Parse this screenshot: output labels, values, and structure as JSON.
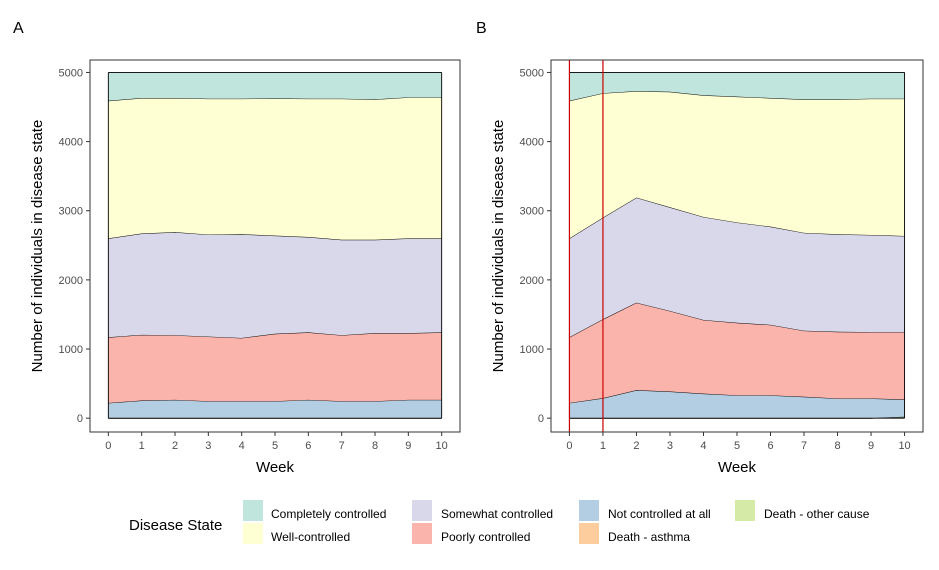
{
  "panels": [
    {
      "tag": "A"
    },
    {
      "tag": "B"
    }
  ],
  "legend": {
    "title": "Disease State",
    "items": [
      {
        "label": "Completely controlled",
        "color": "#bfe5dc"
      },
      {
        "label": "Well-controlled",
        "color": "#ffffd4"
      },
      {
        "label": "Somewhat controlled",
        "color": "#d9d8ea"
      },
      {
        "label": "Poorly controlled",
        "color": "#fbb4ab"
      },
      {
        "label": "Not controlled at all",
        "color": "#b3cde3"
      },
      {
        "label": "Death - asthma",
        "color": "#fdcd9d"
      },
      {
        "label": "Death - other cause",
        "color": "#d5eaa6"
      }
    ]
  },
  "chart_data": [
    {
      "type": "area",
      "stacked": true,
      "panel": "A",
      "xlabel": "Week",
      "ylabel": "Number of individuals in disease state",
      "x": [
        0,
        1,
        2,
        3,
        4,
        5,
        6,
        7,
        8,
        9,
        10
      ],
      "xlim": [
        -0.55,
        10.55
      ],
      "ylim": [
        -200,
        5180
      ],
      "yticks": [
        0,
        1000,
        2000,
        3000,
        4000,
        5000
      ],
      "grid": false,
      "legend_position": "bottom",
      "series": [
        {
          "name": "Death - other cause",
          "values": [
            0,
            0,
            0,
            0,
            0,
            0,
            0,
            0,
            0,
            0,
            0
          ]
        },
        {
          "name": "Death - asthma",
          "values": [
            0,
            0,
            0,
            0,
            0,
            0,
            0,
            0,
            0,
            0,
            0
          ]
        },
        {
          "name": "Not controlled at all",
          "values": [
            220,
            255,
            265,
            245,
            245,
            245,
            265,
            245,
            245,
            265,
            265
          ]
        },
        {
          "name": "Poorly controlled",
          "values": [
            950,
            950,
            935,
            935,
            915,
            975,
            975,
            955,
            985,
            965,
            975
          ]
        },
        {
          "name": "Somewhat controlled",
          "values": [
            1430,
            1465,
            1490,
            1475,
            1500,
            1420,
            1380,
            1380,
            1350,
            1370,
            1360
          ]
        },
        {
          "name": "Well-controlled",
          "values": [
            1990,
            1960,
            1940,
            1965,
            1960,
            1985,
            2000,
            2040,
            2030,
            2040,
            2040
          ]
        },
        {
          "name": "Completely controlled",
          "values": [
            410,
            370,
            370,
            380,
            380,
            375,
            380,
            380,
            390,
            360,
            360
          ]
        }
      ]
    },
    {
      "type": "area",
      "stacked": true,
      "panel": "B",
      "xlabel": "Week",
      "ylabel": "Number of individuals in disease state",
      "x": [
        0,
        1,
        2,
        3,
        4,
        5,
        6,
        7,
        8,
        9,
        10
      ],
      "xlim": [
        -0.55,
        10.55
      ],
      "ylim": [
        -200,
        5180
      ],
      "yticks": [
        0,
        1000,
        2000,
        3000,
        4000,
        5000
      ],
      "grid": false,
      "reference_lines_x": [
        0,
        1
      ],
      "reference_line_color": "#cc0000",
      "series": [
        {
          "name": "Death - other cause",
          "values": [
            0,
            0,
            0,
            0,
            0,
            0,
            0,
            0,
            0,
            0,
            20
          ]
        },
        {
          "name": "Death - asthma",
          "values": [
            0,
            0,
            0,
            0,
            0,
            0,
            0,
            0,
            0,
            0,
            0
          ]
        },
        {
          "name": "Not controlled at all",
          "values": [
            220,
            290,
            405,
            385,
            355,
            330,
            330,
            310,
            285,
            285,
            250
          ]
        },
        {
          "name": "Poorly controlled",
          "values": [
            950,
            1140,
            1265,
            1165,
            1065,
            1050,
            1020,
            955,
            965,
            960,
            975
          ]
        },
        {
          "name": "Somewhat controlled",
          "values": [
            1430,
            1470,
            1520,
            1500,
            1490,
            1450,
            1420,
            1415,
            1410,
            1405,
            1390
          ]
        },
        {
          "name": "Well-controlled",
          "values": [
            1990,
            1800,
            1540,
            1670,
            1760,
            1820,
            1860,
            1930,
            1950,
            1970,
            1985
          ]
        },
        {
          "name": "Completely controlled",
          "values": [
            410,
            300,
            270,
            280,
            330,
            350,
            370,
            390,
            390,
            380,
            380
          ]
        }
      ]
    }
  ]
}
